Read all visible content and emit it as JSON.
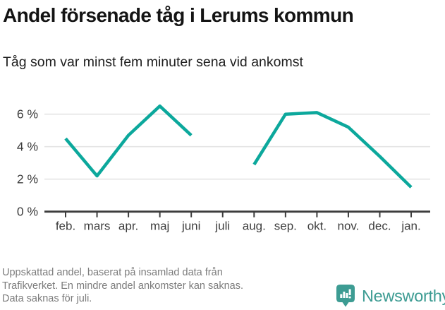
{
  "header": {
    "title": "Andel försenade tåg i Lerums kommun",
    "subtitle": "Tåg som var minst fem minuter sena vid ankomst"
  },
  "chart_data": {
    "type": "line",
    "title": "Andel försenade tåg i Lerums kommun",
    "subtitle": "Tåg som var minst fem minuter sena vid ankomst",
    "categories": [
      "feb.",
      "mars",
      "apr.",
      "maj",
      "juni",
      "juli",
      "aug.",
      "sep.",
      "okt.",
      "nov.",
      "dec.",
      "jan."
    ],
    "values": [
      4.5,
      2.2,
      4.7,
      6.5,
      4.7,
      null,
      2.9,
      6.0,
      6.1,
      5.2,
      3.4,
      1.5
    ],
    "unit": "%",
    "ylim": [
      0,
      7
    ],
    "yticks": [
      0,
      2,
      4,
      6
    ],
    "ytick_labels": [
      "0 %",
      "2 %",
      "4 %",
      "6 %"
    ],
    "grid": true,
    "legend": false,
    "line_color": "#0ca89c",
    "missing_categories": [
      "juli"
    ]
  },
  "footer": {
    "note_lines": [
      "Uppskattad andel, baserat på insamlad data från",
      "Trafikverket. En mindre andel ankomster kan saknas.",
      "Data saknas för juli."
    ],
    "brand": "Newsworthy"
  },
  "colors": {
    "line": "#0ca89c",
    "brand": "#3d9c93",
    "axis_text": "#3d3d3d",
    "axis_line": "#3d3d3d",
    "grid": "#e4e4e4",
    "note_text": "#7c7c7c"
  }
}
